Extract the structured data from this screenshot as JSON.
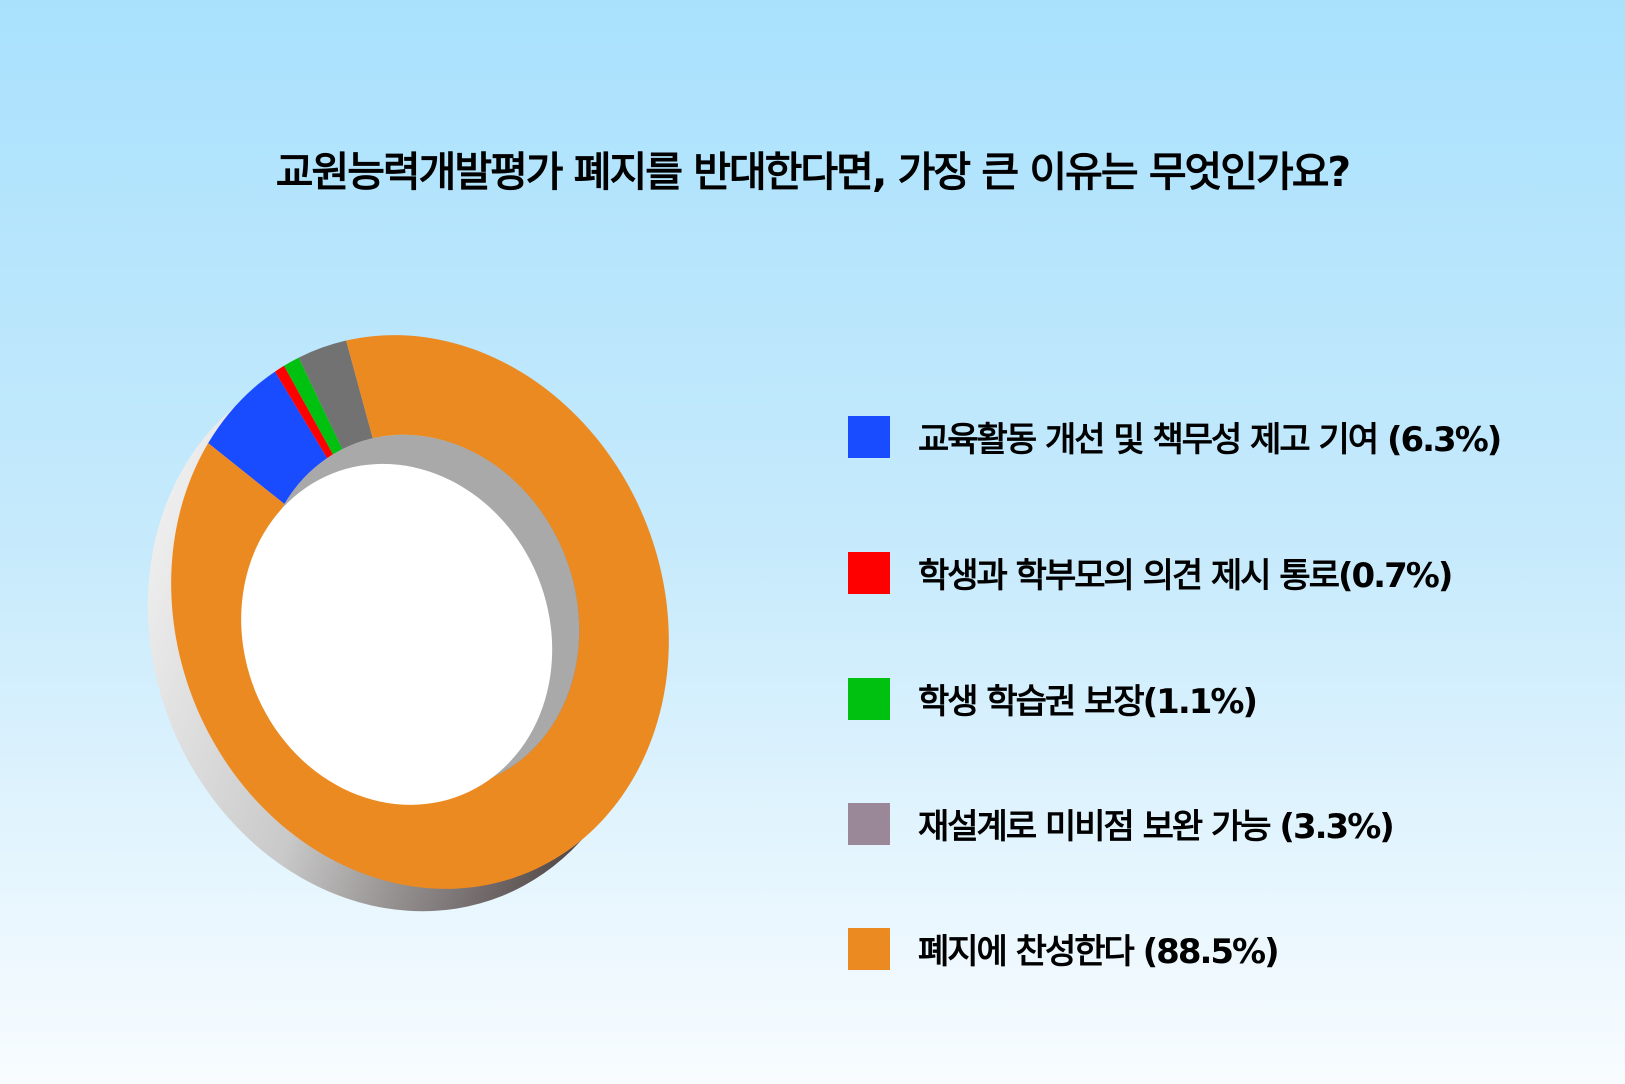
{
  "chart_data": {
    "type": "pie",
    "variant": "donut-3d",
    "title": "교원능력개발평가 폐지를 반대한다면, 가장 큰 이유는 무엇인가요?",
    "legend_placement": "right",
    "slices": [
      {
        "label": "교육활동 개선 및 책무성 제고 기여 (6.3%)",
        "value": 6.3,
        "color": "#1a4cff"
      },
      {
        "label": "학생과 학부모의 의견 제시 통로(0.7%)",
        "value": 0.7,
        "color": "#ff0000"
      },
      {
        "label": "학생 학습권 보장(1.1%)",
        "value": 1.1,
        "color": "#00c010"
      },
      {
        "label": "재설계로 미비점 보완 가능 (3.3%)",
        "value": 3.3,
        "color": "#727272",
        "legend_color": "#9a8797"
      },
      {
        "label": "폐지에 찬성한다 (88.5%)",
        "value": 88.5,
        "color": "#ec8a22"
      }
    ]
  }
}
